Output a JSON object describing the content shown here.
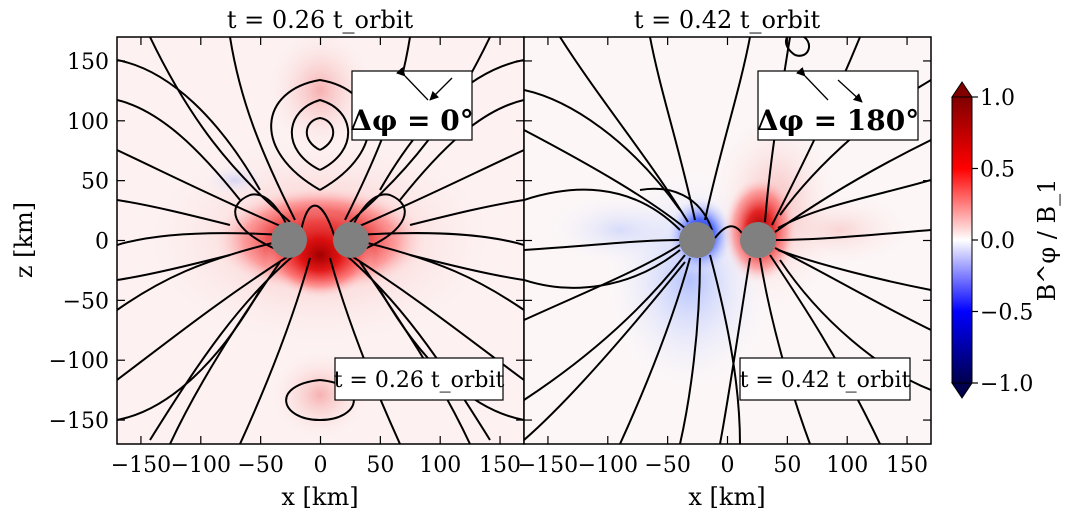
{
  "chart_data": [
    {
      "type": "heatmap",
      "panel": "left",
      "title": "t = 0.26 t_orbit",
      "annotation_time": "t = 0.26 t_orbit",
      "annotation_angle": "Δφ = 0°",
      "xlabel": "x [km]",
      "ylabel": "z [km]",
      "xlim": [
        -170,
        170
      ],
      "ylim": [
        -170,
        170
      ],
      "xticks": [
        -150,
        -100,
        -50,
        0,
        50,
        100,
        150
      ],
      "yticks": [
        -150,
        -100,
        -50,
        0,
        50,
        100,
        150
      ],
      "stars_x": [
        -25,
        25
      ],
      "stars_z": [
        0,
        0
      ],
      "star_radius_km": 15
    },
    {
      "type": "heatmap",
      "panel": "right",
      "title": "t = 0.42 t_orbit",
      "annotation_time": "t = 0.42 t_orbit",
      "annotation_angle": "Δφ = 180°",
      "xlabel": "x [km]",
      "xlim": [
        -170,
        170
      ],
      "ylim": [
        -170,
        170
      ],
      "xticks": [
        -150,
        -100,
        -50,
        0,
        50,
        100,
        150
      ],
      "stars_x": [
        -25,
        25
      ],
      "stars_z": [
        0,
        0
      ],
      "star_radius_km": 15
    }
  ],
  "colorbar": {
    "label": "B^φ / B_1",
    "ticks": [
      1.0,
      0.5,
      0.0,
      -0.5,
      -1.0
    ],
    "tick_labels": [
      "1.0",
      "0.5",
      "0.0",
      "−0.5",
      "−1.0"
    ],
    "range": [
      -1.0,
      1.0
    ],
    "colormap": "seismic",
    "colors": {
      "low": "#00004c",
      "mid": "#ffffff",
      "high": "#800000"
    }
  }
}
